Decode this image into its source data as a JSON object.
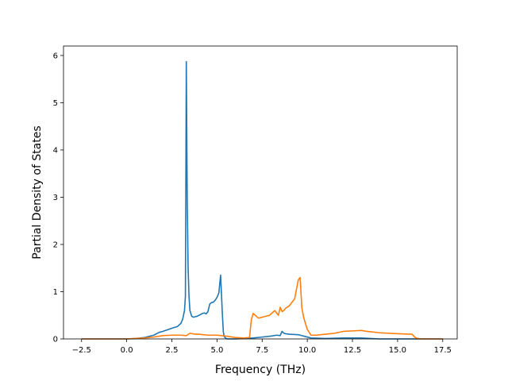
{
  "chart_data": {
    "type": "line",
    "title": "",
    "xlabel": "Frequency (THz)",
    "ylabel": "Partial Density of States",
    "xlim": [
      -3.5,
      18.3
    ],
    "ylim": [
      0,
      6.2
    ],
    "xticks": [
      -2.5,
      0.0,
      2.5,
      5.0,
      7.5,
      10.0,
      12.5,
      15.0,
      17.5
    ],
    "xtick_labels": [
      "−2.5",
      "0.0",
      "2.5",
      "5.0",
      "7.5",
      "10.0",
      "12.5",
      "15.0",
      "17.5"
    ],
    "yticks": [
      0,
      1,
      2,
      3,
      4,
      5,
      6
    ],
    "ytick_labels": [
      "0",
      "1",
      "2",
      "3",
      "4",
      "5",
      "6"
    ],
    "grid": false,
    "legend": "none",
    "series": [
      {
        "color": "#1f77b4",
        "x": [
          -2.5,
          0.0,
          0.5,
          1.0,
          1.5,
          1.8,
          2.0,
          2.3,
          2.6,
          2.8,
          3.0,
          3.1,
          3.2,
          3.25,
          3.3,
          3.35,
          3.4,
          3.45,
          3.5,
          3.6,
          3.7,
          3.8,
          3.9,
          4.0,
          4.1,
          4.2,
          4.3,
          4.4,
          4.5,
          4.6,
          4.7,
          4.8,
          4.9,
          5.0,
          5.1,
          5.2,
          5.3,
          5.35,
          5.4,
          5.5,
          5.6,
          5.8,
          6.0,
          7.0,
          7.5,
          8.0,
          8.3,
          8.5,
          8.6,
          8.7,
          8.8,
          9.0,
          9.5,
          9.8,
          10.2,
          11.0,
          12.0,
          13.0,
          13.5,
          14.0,
          15.0,
          16.0,
          17.5
        ],
        "y": [
          0.0,
          0.0,
          0.01,
          0.03,
          0.08,
          0.14,
          0.16,
          0.2,
          0.24,
          0.26,
          0.33,
          0.42,
          0.6,
          0.9,
          5.87,
          3.0,
          1.5,
          0.9,
          0.6,
          0.48,
          0.46,
          0.47,
          0.48,
          0.5,
          0.52,
          0.54,
          0.55,
          0.53,
          0.58,
          0.74,
          0.77,
          0.78,
          0.82,
          0.88,
          0.97,
          1.35,
          0.5,
          0.15,
          0.05,
          0.01,
          0.0,
          0.0,
          0.0,
          0.02,
          0.04,
          0.06,
          0.08,
          0.07,
          0.16,
          0.12,
          0.11,
          0.1,
          0.09,
          0.06,
          0.02,
          0.01,
          0.02,
          0.02,
          0.01,
          0.0,
          0.0,
          0.0,
          0.0
        ]
      },
      {
        "color": "#ff7f0e",
        "x": [
          -2.5,
          0.0,
          1.0,
          1.5,
          2.0,
          2.5,
          3.0,
          3.3,
          3.5,
          3.8,
          4.0,
          4.5,
          5.0,
          5.5,
          6.0,
          6.5,
          6.8,
          6.9,
          7.0,
          7.3,
          7.6,
          7.9,
          8.2,
          8.4,
          8.5,
          8.6,
          8.7,
          8.8,
          9.0,
          9.3,
          9.5,
          9.6,
          9.7,
          9.8,
          10.0,
          10.2,
          10.5,
          11.0,
          11.5,
          12.0,
          12.5,
          13.0,
          13.3,
          14.0,
          15.0,
          15.8,
          16.0,
          16.3,
          17.5
        ],
        "y": [
          0.0,
          0.0,
          0.02,
          0.04,
          0.07,
          0.08,
          0.08,
          0.07,
          0.12,
          0.1,
          0.1,
          0.08,
          0.08,
          0.06,
          0.03,
          0.02,
          0.03,
          0.4,
          0.54,
          0.44,
          0.47,
          0.5,
          0.6,
          0.5,
          0.67,
          0.58,
          0.6,
          0.65,
          0.7,
          0.85,
          1.25,
          1.3,
          0.65,
          0.45,
          0.2,
          0.08,
          0.08,
          0.1,
          0.12,
          0.16,
          0.17,
          0.18,
          0.16,
          0.13,
          0.11,
          0.1,
          0.02,
          0.0,
          0.0
        ]
      }
    ]
  }
}
